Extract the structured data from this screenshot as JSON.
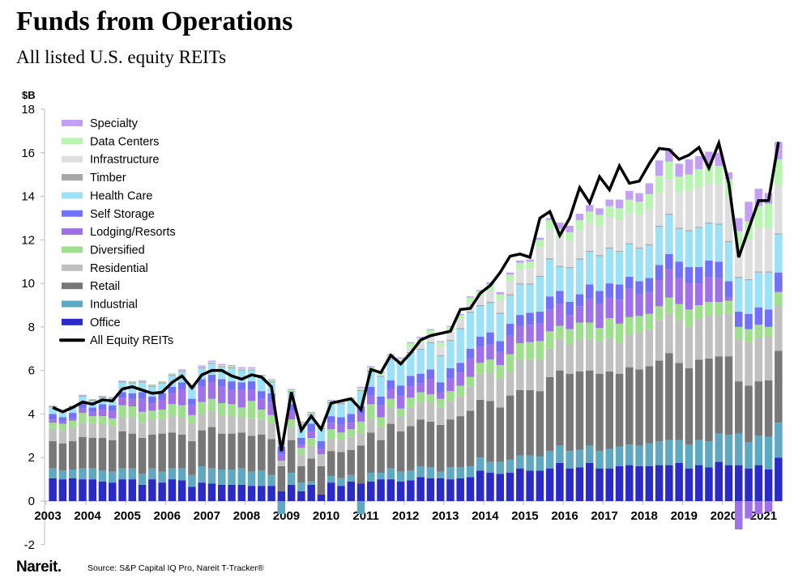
{
  "title": "Funds from Operations",
  "subtitle": "All listed U.S. equity REITs",
  "footer": {
    "logo": "Nareit.",
    "source": "Source: S&P Capital IQ Pro, Nareit T-Tracker®"
  },
  "chart_data": {
    "type": "bar",
    "stacked": true,
    "ylabel": "$B",
    "ylim": [
      -2,
      18
    ],
    "yticks": [
      "18",
      "16",
      "14",
      "12",
      "10",
      "8",
      "6",
      "4",
      "2",
      "0",
      "-2"
    ],
    "xtick_labels": [
      "2003",
      "2004",
      "2005",
      "2006",
      "2007",
      "2008",
      "2009",
      "2010",
      "2011",
      "2012",
      "2013",
      "2014",
      "2015",
      "2016",
      "2017",
      "2018",
      "2019",
      "2020",
      "2021"
    ],
    "x": "quarterly, 2003 Q1 – 2021 Q2",
    "legend_placement": "top-left",
    "grid": false,
    "series": [
      {
        "name": "Office",
        "color": "#2a2ac8",
        "values": [
          1.05,
          1.0,
          1.05,
          1.0,
          1.0,
          0.9,
          0.85,
          1.0,
          1.0,
          0.75,
          1.0,
          0.85,
          1.0,
          0.95,
          0.65,
          0.85,
          0.8,
          0.75,
          0.75,
          0.75,
          0.7,
          0.7,
          0.7,
          0.45,
          0.75,
          0.45,
          0.75,
          0.3,
          0.85,
          0.7,
          0.9,
          0.8,
          0.9,
          1.0,
          1.0,
          0.9,
          0.95,
          1.1,
          1.05,
          1.05,
          1.0,
          1.05,
          1.1,
          1.4,
          1.3,
          1.25,
          1.3,
          1.5,
          1.4,
          1.4,
          1.5,
          1.75,
          1.5,
          1.55,
          1.75,
          1.5,
          1.5,
          1.6,
          1.65,
          1.6,
          1.6,
          1.65,
          1.65,
          1.75,
          1.5,
          1.65,
          1.55,
          1.8,
          1.65,
          1.65,
          1.5,
          1.65,
          1.45,
          2.0
        ]
      },
      {
        "name": "Industrial",
        "color": "#5fa8c2",
        "values": [
          0.45,
          0.4,
          0.4,
          0.5,
          0.5,
          0.5,
          0.5,
          0.5,
          0.5,
          0.5,
          0.5,
          0.5,
          0.5,
          0.55,
          0.55,
          0.75,
          0.7,
          0.7,
          0.7,
          0.75,
          0.65,
          0.7,
          0.5,
          -0.6,
          0.55,
          0.4,
          0.15,
          0.0,
          0.3,
          0.35,
          0.3,
          -0.6,
          0.4,
          0.3,
          0.5,
          0.45,
          0.45,
          0.5,
          0.5,
          0.3,
          0.55,
          0.5,
          0.5,
          0.6,
          0.5,
          0.55,
          0.6,
          0.6,
          0.7,
          0.65,
          0.8,
          0.8,
          0.8,
          0.8,
          0.8,
          0.8,
          0.9,
          0.9,
          0.95,
          0.95,
          1.05,
          1.1,
          1.15,
          1.05,
          1.1,
          1.15,
          1.2,
          1.3,
          1.4,
          1.45,
          1.2,
          1.35,
          1.5,
          1.6
        ]
      },
      {
        "name": "Retail",
        "color": "#777777",
        "values": [
          1.25,
          1.25,
          1.3,
          1.45,
          1.4,
          1.5,
          1.45,
          1.7,
          1.6,
          1.65,
          1.55,
          1.75,
          1.65,
          1.55,
          1.55,
          1.65,
          1.9,
          1.65,
          1.65,
          1.65,
          1.65,
          1.65,
          1.65,
          1.15,
          1.5,
          0.75,
          1.05,
          1.3,
          1.15,
          1.2,
          1.15,
          1.75,
          1.85,
          1.5,
          2.05,
          1.85,
          2.05,
          2.15,
          2.1,
          2.15,
          2.2,
          2.35,
          2.55,
          2.65,
          2.8,
          2.5,
          2.95,
          3.0,
          3.0,
          3.0,
          3.4,
          3.45,
          3.55,
          3.6,
          3.45,
          3.55,
          3.55,
          3.35,
          3.55,
          3.5,
          3.55,
          3.7,
          4.0,
          3.55,
          3.5,
          3.7,
          3.8,
          3.55,
          3.6,
          2.4,
          2.6,
          2.5,
          2.6,
          3.3
        ]
      },
      {
        "name": "Residential",
        "color": "#c0c0c0",
        "values": [
          0.6,
          0.6,
          0.65,
          0.65,
          0.65,
          0.65,
          0.65,
          0.65,
          0.75,
          0.7,
          0.7,
          0.65,
          0.75,
          0.8,
          0.8,
          0.75,
          0.75,
          0.8,
          0.8,
          0.7,
          0.8,
          0.7,
          0.7,
          0.2,
          0.6,
          0.55,
          0.6,
          0.5,
          0.55,
          0.55,
          0.6,
          0.55,
          0.6,
          0.6,
          0.75,
          0.7,
          0.85,
          0.8,
          0.85,
          0.8,
          0.85,
          0.9,
          1.1,
          1.2,
          1.3,
          1.35,
          1.1,
          1.4,
          1.4,
          1.45,
          1.3,
          1.45,
          1.35,
          1.45,
          1.45,
          1.5,
          1.55,
          1.4,
          1.5,
          1.7,
          1.65,
          1.85,
          1.8,
          1.95,
          1.9,
          1.9,
          2.0,
          1.9,
          1.95,
          1.9,
          2.0,
          2.0,
          2.0,
          2.1
        ]
      },
      {
        "name": "Diversified",
        "color": "#9ee08e",
        "values": [
          0.25,
          0.3,
          0.3,
          0.45,
          0.35,
          0.35,
          0.35,
          0.55,
          0.5,
          0.5,
          0.4,
          0.45,
          0.55,
          0.55,
          0.4,
          0.55,
          0.55,
          0.6,
          0.55,
          0.45,
          0.8,
          0.45,
          0.4,
          0.05,
          0.35,
          0.3,
          0.35,
          0.05,
          0.45,
          0.35,
          0.35,
          0.55,
          0.7,
          0.45,
          0.4,
          0.35,
          0.45,
          0.45,
          0.4,
          0.4,
          0.45,
          0.5,
          0.45,
          0.5,
          0.6,
          0.6,
          0.8,
          0.75,
          0.8,
          0.85,
          0.8,
          0.6,
          0.7,
          0.8,
          0.75,
          0.6,
          0.9,
          0.9,
          0.8,
          0.75,
          0.75,
          0.65,
          0.75,
          0.75,
          0.8,
          0.6,
          0.6,
          0.6,
          0.6,
          0.6,
          0.6,
          0.6,
          0.45,
          0.6
        ]
      },
      {
        "name": "Lodging/Resorts",
        "color": "#a070e8",
        "values": [
          0.15,
          0.1,
          0.1,
          0.2,
          0.2,
          0.3,
          0.35,
          0.35,
          0.35,
          0.6,
          0.35,
          0.45,
          0.5,
          0.75,
          0.45,
          0.7,
          0.75,
          0.75,
          0.65,
          0.8,
          0.5,
          0.5,
          0.6,
          0.3,
          0.4,
          0.15,
          0.3,
          0.25,
          0.3,
          0.35,
          0.3,
          0.35,
          0.4,
          0.55,
          0.45,
          0.6,
          0.55,
          0.4,
          0.7,
          0.3,
          0.6,
          0.6,
          0.85,
          0.75,
          0.7,
          0.6,
          0.85,
          0.8,
          0.8,
          0.8,
          1.0,
          1.0,
          0.65,
          0.75,
          1.1,
          1.1,
          0.95,
          1.1,
          1.3,
          1.0,
          1.0,
          1.2,
          1.3,
          1.2,
          1.2,
          1.0,
          1.15,
          1.1,
          0.15,
          -1.3,
          -0.8,
          -0.6,
          -0.5,
          0.05
        ]
      },
      {
        "name": "Self Storage",
        "color": "#7070f8",
        "values": [
          0.25,
          0.2,
          0.25,
          0.25,
          0.2,
          0.25,
          0.25,
          0.25,
          0.25,
          0.3,
          0.3,
          0.3,
          0.3,
          0.3,
          0.3,
          0.35,
          0.35,
          0.35,
          0.4,
          0.35,
          0.4,
          0.35,
          0.4,
          0.35,
          0.3,
          0.3,
          0.35,
          0.35,
          0.3,
          0.35,
          0.4,
          0.35,
          0.4,
          0.4,
          0.4,
          0.45,
          0.45,
          0.45,
          0.45,
          0.45,
          0.45,
          0.45,
          0.45,
          0.45,
          0.55,
          0.5,
          0.55,
          0.5,
          0.55,
          0.55,
          0.6,
          0.6,
          0.6,
          0.55,
          0.65,
          0.6,
          0.65,
          0.7,
          0.55,
          0.6,
          0.65,
          0.7,
          0.7,
          0.75,
          0.75,
          0.75,
          0.75,
          0.75,
          0.75,
          0.7,
          0.7,
          0.8,
          0.8,
          0.85
        ]
      },
      {
        "name": "Health Care",
        "color": "#9de1f7",
        "values": [
          0.3,
          0.25,
          0.25,
          0.3,
          0.3,
          0.3,
          0.3,
          0.45,
          0.45,
          0.45,
          0.45,
          0.45,
          0.5,
          0.5,
          0.5,
          0.5,
          0.5,
          0.55,
          0.6,
          0.55,
          0.5,
          0.6,
          0.5,
          0.15,
          0.55,
          0.6,
          0.4,
          0.55,
          0.6,
          0.6,
          0.6,
          0.7,
          0.7,
          0.9,
          0.95,
          1.0,
          1.05,
          1.1,
          1.2,
          1.2,
          1.25,
          1.55,
          1.65,
          1.4,
          1.35,
          1.25,
          1.3,
          1.4,
          1.3,
          1.6,
          1.7,
          1.1,
          1.55,
          1.6,
          1.5,
          1.6,
          1.6,
          1.5,
          1.5,
          1.5,
          1.5,
          1.75,
          1.8,
          1.5,
          1.65,
          1.8,
          1.7,
          1.7,
          1.8,
          1.55,
          1.55,
          1.6,
          1.7,
          1.75
        ]
      },
      {
        "name": "Timber",
        "color": "#a6a6a6",
        "values": [
          0.05,
          0.05,
          0.05,
          0.05,
          0.05,
          0.05,
          0.05,
          0.05,
          0.05,
          0.05,
          0.05,
          0.05,
          0.05,
          0.05,
          0.05,
          0.05,
          0.05,
          0.05,
          0.05,
          0.05,
          0.05,
          0.05,
          0.05,
          0.05,
          0.05,
          0.05,
          0.05,
          0.05,
          0.05,
          0.05,
          0.05,
          0.05,
          0.05,
          0.05,
          0.05,
          0.05,
          0.05,
          0.05,
          0.05,
          0.05,
          0.05,
          0.05,
          0.05,
          0.05,
          0.05,
          0.05,
          0.05,
          0.05,
          0.05,
          0.05,
          0.05,
          0.05,
          0.05,
          0.05,
          0.05,
          0.05,
          0.05,
          0.05,
          0.05,
          0.05,
          0.05,
          0.05,
          0.05,
          0.05,
          0.05,
          0.05,
          0.05,
          0.05,
          0.05,
          0.05,
          0.05,
          0.05,
          0.05,
          0.05
        ]
      },
      {
        "name": "Infrastructure",
        "color": "#dedede",
        "values": [
          0,
          0,
          0,
          0,
          0,
          0,
          0,
          0,
          0,
          0,
          0,
          0,
          0,
          0,
          0,
          0,
          0,
          0,
          0,
          0,
          0,
          0,
          0,
          0,
          0,
          0,
          0,
          0,
          0,
          0,
          0,
          0,
          0.05,
          0.05,
          0.05,
          0.1,
          0.2,
          0.3,
          0.35,
          0.4,
          0.4,
          0.4,
          0.4,
          0.4,
          0.5,
          0.55,
          0.6,
          0.65,
          0.7,
          1.3,
          1.35,
          1.3,
          1.2,
          1.3,
          1.3,
          1.35,
          1.4,
          1.4,
          1.4,
          1.5,
          1.6,
          1.5,
          1.6,
          1.65,
          1.8,
          1.8,
          1.8,
          1.8,
          2.0,
          1.3,
          1.8,
          2.0,
          2.0,
          2.2
        ]
      },
      {
        "name": "Data Centers",
        "color": "#b8f5b0",
        "values": [
          0,
          0,
          0,
          0,
          0,
          0,
          0,
          0,
          0.02,
          0.02,
          0.02,
          0.02,
          0.03,
          0.03,
          0.03,
          0.03,
          0.05,
          0.05,
          0.05,
          0.05,
          0.05,
          0.05,
          0.05,
          0.05,
          0.05,
          0.05,
          0.05,
          0.05,
          0.05,
          0.05,
          0.05,
          0.1,
          0.1,
          0.1,
          0.1,
          0.1,
          0.2,
          0.2,
          0.2,
          0.2,
          0.2,
          0.2,
          0.25,
          0.25,
          0.3,
          0.3,
          0.3,
          0.3,
          0.3,
          0.35,
          0.4,
          0.4,
          0.4,
          0.45,
          0.5,
          0.5,
          0.5,
          0.55,
          0.6,
          0.6,
          0.7,
          0.8,
          0.8,
          0.7,
          0.75,
          0.85,
          0.85,
          0.85,
          0.85,
          0.8,
          0.85,
          1.0,
          1.1,
          1.2
        ]
      },
      {
        "name": "Specialty",
        "color": "#c3a0f5",
        "values": [
          0.03,
          0.03,
          0.03,
          0.03,
          0.03,
          0.03,
          0.03,
          0.03,
          0.03,
          0.03,
          0.03,
          0.03,
          0.03,
          0.03,
          0.03,
          0.05,
          0.05,
          0.05,
          0.05,
          0.05,
          0.05,
          0.05,
          0.05,
          0.05,
          0.05,
          0.05,
          0.05,
          0.05,
          0.05,
          0.05,
          0.05,
          0.05,
          0.05,
          0.05,
          0.05,
          0.05,
          0.05,
          0.05,
          0.05,
          0.05,
          0.05,
          0.05,
          0.05,
          0.05,
          0.1,
          0.1,
          0.1,
          0.1,
          0.1,
          0.1,
          0.1,
          0.3,
          0.3,
          0.3,
          0.3,
          0.3,
          0.3,
          0.4,
          0.4,
          0.4,
          0.5,
          0.7,
          0.6,
          0.6,
          0.7,
          0.6,
          0.6,
          0.6,
          0.3,
          0.6,
          0.9,
          0.8,
          0.5,
          0.8
        ]
      }
    ],
    "line": {
      "name": "All Equity REITs",
      "color": "#000000",
      "values": [
        4.3,
        4.1,
        4.3,
        4.55,
        4.45,
        4.65,
        4.6,
        5.15,
        5.25,
        5.1,
        4.95,
        5.0,
        5.45,
        5.75,
        5.2,
        5.8,
        6.0,
        6.0,
        5.75,
        5.6,
        5.8,
        5.7,
        5.25,
        2.3,
        5.0,
        3.25,
        3.9,
        3.3,
        4.5,
        4.6,
        4.7,
        4.2,
        6.05,
        5.9,
        6.7,
        6.3,
        6.8,
        7.4,
        7.6,
        7.7,
        7.8,
        8.8,
        8.85,
        9.55,
        9.9,
        10.5,
        11.25,
        11.35,
        11.2,
        13.0,
        13.3,
        12.2,
        13.0,
        14.4,
        13.7,
        14.9,
        14.3,
        15.4,
        14.6,
        14.7,
        15.5,
        16.2,
        16.15,
        15.7,
        15.9,
        16.25,
        15.3,
        16.45,
        14.6,
        11.2,
        12.5,
        13.8,
        13.8,
        16.5
      ]
    }
  }
}
